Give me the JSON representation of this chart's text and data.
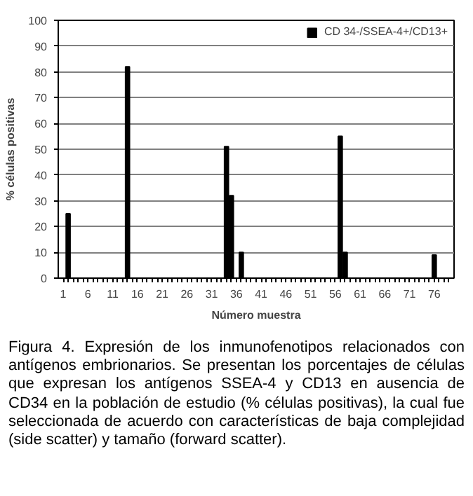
{
  "chart_data": {
    "type": "bar",
    "x": [
      2,
      14,
      34,
      35,
      37,
      57,
      58,
      76
    ],
    "series": [
      {
        "name": "CD 34-/SSEA-4+/CD13+",
        "color": "#000000",
        "values": [
          25,
          82,
          51,
          32,
          10,
          55,
          10,
          9
        ]
      }
    ],
    "xlim": [
      0,
      80
    ],
    "xticks": [
      1,
      {
        "value": 2,
        "label": null
      },
      {
        "value": 3,
        "label": null
      },
      {
        "value": 4,
        "label": null
      },
      {
        "value": 5,
        "label": null
      },
      6,
      {
        "value": 7,
        "label": null
      },
      {
        "value": 8,
        "label": null
      },
      {
        "value": 9,
        "label": null
      },
      {
        "value": 10,
        "label": null
      },
      11,
      {
        "value": 12,
        "label": null
      },
      {
        "value": 13,
        "label": null
      },
      {
        "value": 14,
        "label": null
      },
      {
        "value": 15,
        "label": null
      },
      16,
      {
        "value": 17,
        "label": null
      },
      {
        "value": 18,
        "label": null
      },
      {
        "value": 19,
        "label": null
      },
      {
        "value": 20,
        "label": null
      },
      21,
      {
        "value": 22,
        "label": null
      },
      {
        "value": 23,
        "label": null
      },
      {
        "value": 24,
        "label": null
      },
      {
        "value": 25,
        "label": null
      },
      26,
      {
        "value": 27,
        "label": null
      },
      {
        "value": 28,
        "label": null
      },
      {
        "value": 29,
        "label": null
      },
      {
        "value": 30,
        "label": null
      },
      31,
      {
        "value": 32,
        "label": null
      },
      {
        "value": 33,
        "label": null
      },
      {
        "value": 34,
        "label": null
      },
      {
        "value": 35,
        "label": null
      },
      36,
      {
        "value": 37,
        "label": null
      },
      {
        "value": 38,
        "label": null
      },
      {
        "value": 39,
        "label": null
      },
      {
        "value": 40,
        "label": null
      },
      41,
      {
        "value": 42,
        "label": null
      },
      {
        "value": 43,
        "label": null
      },
      {
        "value": 44,
        "label": null
      },
      {
        "value": 45,
        "label": null
      },
      46,
      {
        "value": 47,
        "label": null
      },
      {
        "value": 48,
        "label": null
      },
      {
        "value": 49,
        "label": null
      },
      {
        "value": 50,
        "label": null
      },
      51,
      {
        "value": 52,
        "label": null
      },
      {
        "value": 53,
        "label": null
      },
      {
        "value": 54,
        "label": null
      },
      {
        "value": 55,
        "label": null
      },
      56,
      {
        "value": 57,
        "label": null
      },
      {
        "value": 58,
        "label": null
      },
      {
        "value": 59,
        "label": null
      },
      {
        "value": 60,
        "label": null
      },
      61,
      {
        "value": 62,
        "label": null
      },
      {
        "value": 63,
        "label": null
      },
      {
        "value": 64,
        "label": null
      },
      {
        "value": 65,
        "label": null
      },
      66,
      {
        "value": 67,
        "label": null
      },
      {
        "value": 68,
        "label": null
      },
      {
        "value": 69,
        "label": null
      },
      {
        "value": 70,
        "label": null
      },
      71,
      {
        "value": 72,
        "label": null
      },
      {
        "value": 73,
        "label": null
      },
      {
        "value": 74,
        "label": null
      },
      {
        "value": 75,
        "label": null
      },
      76,
      {
        "value": 77,
        "label": null
      },
      {
        "value": 78,
        "label": null
      },
      {
        "value": 79,
        "label": null
      }
    ],
    "xlabel": "Número muestra",
    "ylabel": "% células positivas",
    "ylim": [
      0,
      100
    ],
    "yticks": [
      0,
      10,
      20,
      30,
      40,
      50,
      60,
      70,
      80,
      90,
      100
    ],
    "grid": "y",
    "legend": "top right",
    "annotations": [
      "Figura 4. Expresión de los inmunofenotipos relacionados con antígenos embrionarios. Se presentan los porcentajes de células que expresan los antígenos SSEA-4 y CD13 en ausencia de CD34 en la población de estudio (% células positivas), la cual fue seleccionada de acuerdo con características de baja complejidad (side scatter)  y tamaño (forward scatter)."
    ]
  }
}
